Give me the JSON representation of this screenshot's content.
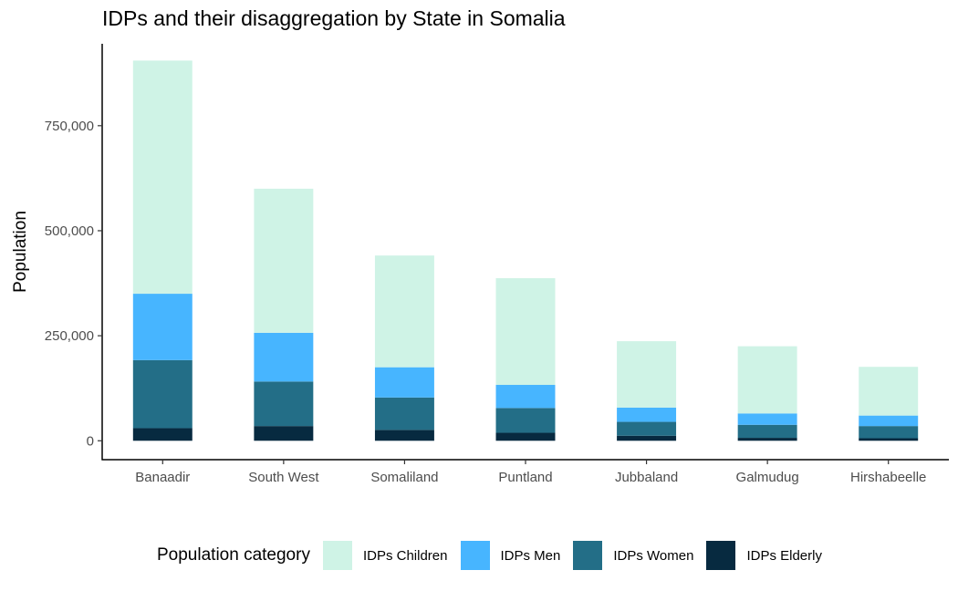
{
  "chart_data": {
    "type": "bar",
    "stacked": true,
    "title": "IDPs and their disaggregation by State in Somalia",
    "xlabel": "",
    "ylabel": "Population",
    "categories": [
      "Banaadir",
      "South West",
      "Somaliland",
      "Puntland",
      "Jubbaland",
      "Galmudug",
      "Hirshabeelle"
    ],
    "series": [
      {
        "name": "IDPs Elderly",
        "color": "#072A40",
        "values": [
          30000,
          35000,
          26000,
          19000,
          12000,
          7000,
          6000
        ]
      },
      {
        "name": "IDPs Women",
        "color": "#236E87",
        "values": [
          162000,
          106000,
          77000,
          59000,
          33000,
          31000,
          29000
        ]
      },
      {
        "name": "IDPs Men",
        "color": "#47B5FF",
        "values": [
          158000,
          116000,
          72000,
          55000,
          34000,
          27000,
          25000
        ]
      },
      {
        "name": "IDPs Children",
        "color": "#CFF3E6",
        "values": [
          555000,
          343000,
          266000,
          254000,
          158000,
          160000,
          116000
        ]
      }
    ],
    "yticks": [
      0,
      250000,
      500000,
      750000
    ],
    "ytick_labels": [
      "0",
      "250,000",
      "500,000",
      "750,000"
    ],
    "ylim": [
      -45000,
      945000
    ],
    "grid": false,
    "legend": {
      "title": "Population category",
      "position": "bottom",
      "order": [
        "IDPs Children",
        "IDPs Men",
        "IDPs Women",
        "IDPs Elderly"
      ]
    }
  }
}
